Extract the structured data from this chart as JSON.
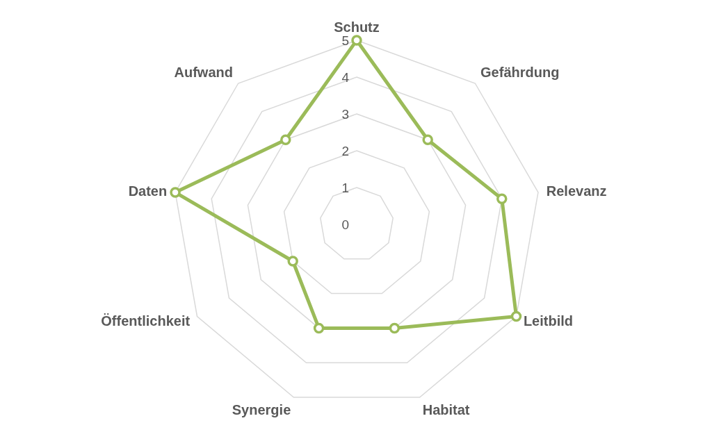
{
  "chart_data": {
    "type": "radar",
    "categories": [
      "Schutz",
      "Gefährdung",
      "Relevanz",
      "Leitbild",
      "Habitat",
      "Synergie",
      "Öffentlichkeit",
      "Daten",
      "Aufwand"
    ],
    "series": [
      {
        "color": "#9bbb59",
        "values": [
          5,
          3,
          4,
          5,
          3,
          3,
          2,
          5,
          3
        ]
      }
    ],
    "ylim": [
      0,
      5
    ],
    "yticks": [
      0,
      1,
      2,
      3,
      4,
      5
    ],
    "grid": true,
    "marker": "circle",
    "line_style": "solid",
    "legend": false
  }
}
